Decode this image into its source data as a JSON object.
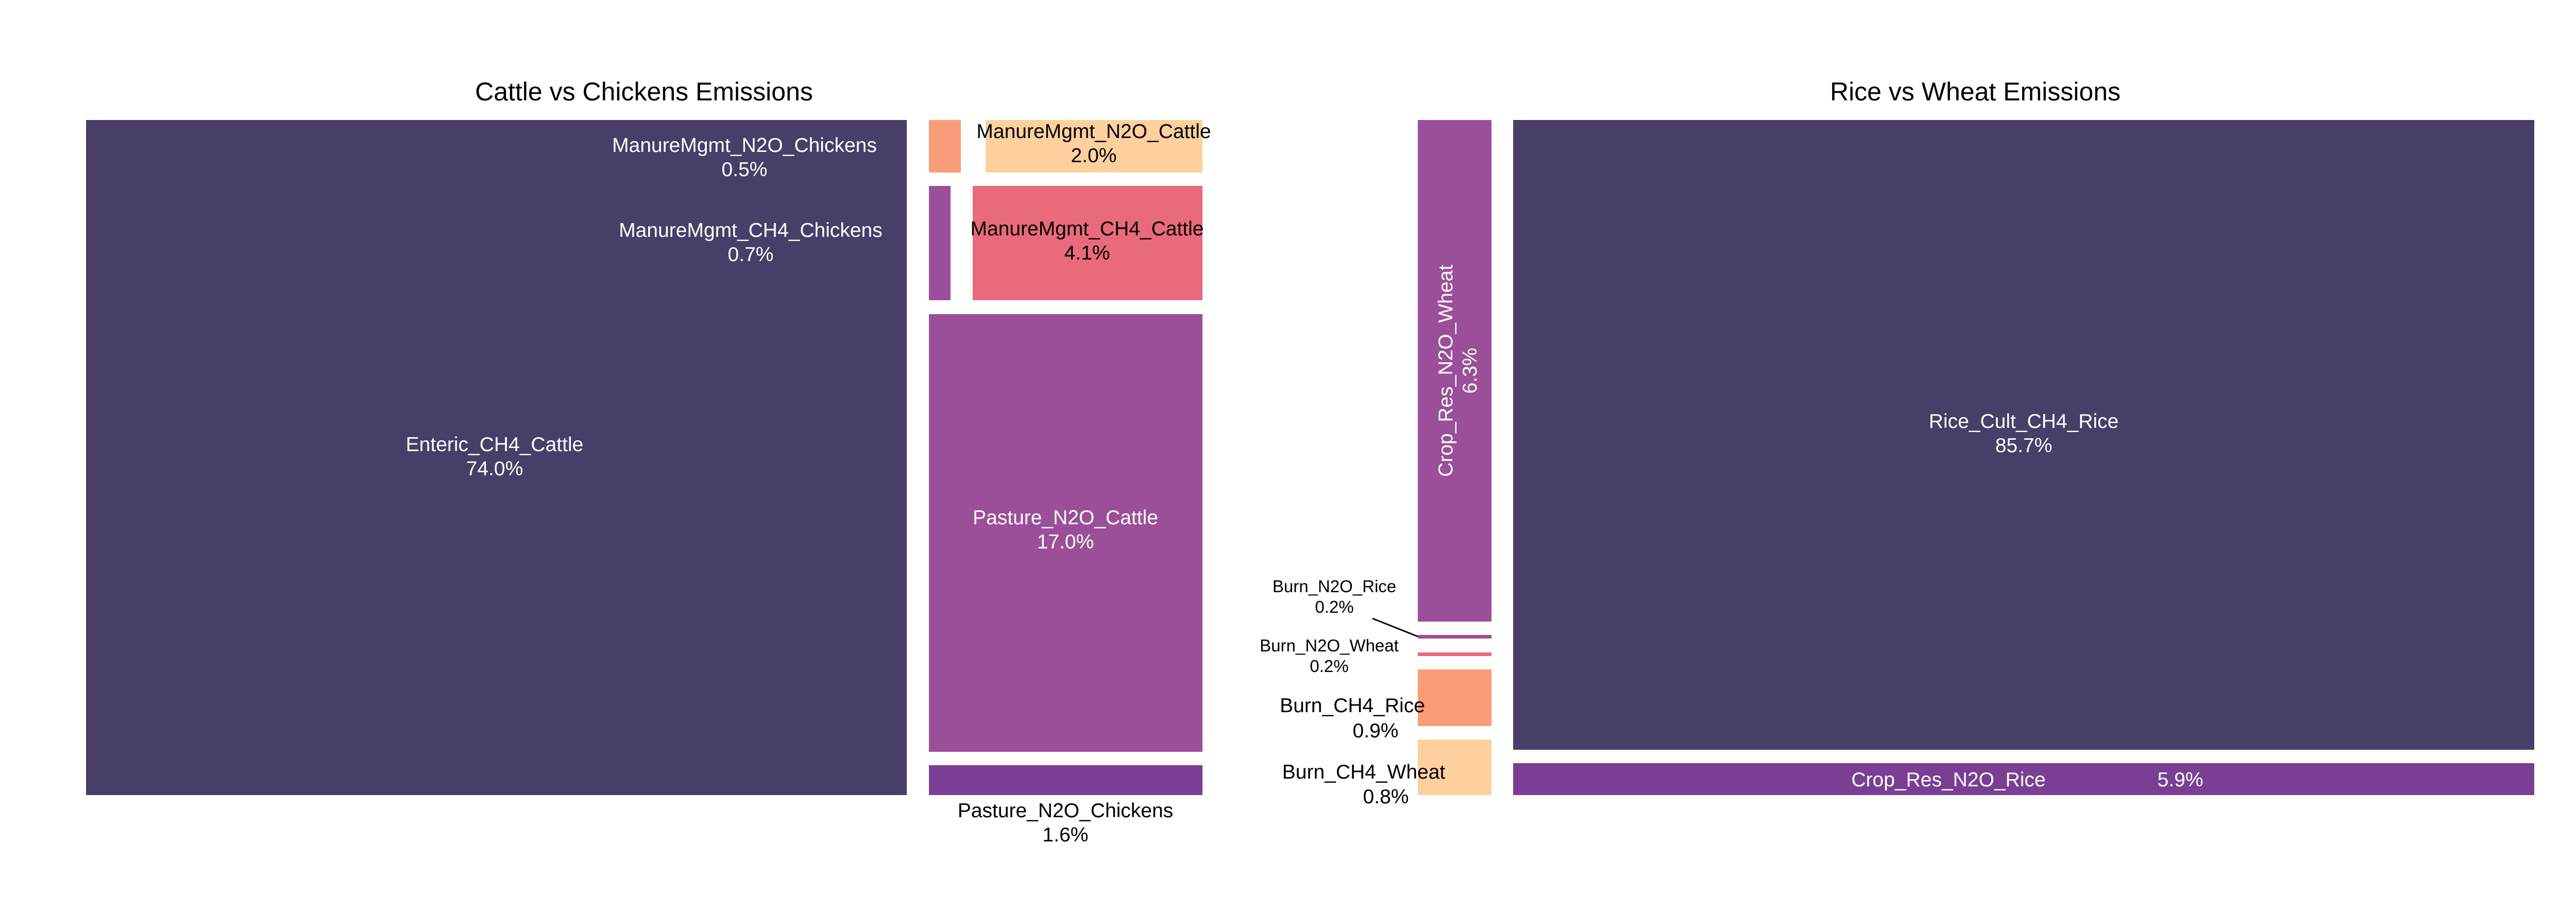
{
  "colors": {
    "dark": "#483e68",
    "purple": "#9b4f99",
    "deep_purple": "#7a3e94",
    "pink": "#e96a7b",
    "salmon": "#f99c79",
    "peach": "#fdd09e",
    "white": "#ffffff",
    "black": "#000000"
  },
  "chart_data": [
    {
      "type": "treemap",
      "title": "Cattle vs Chickens Emissions",
      "series": [
        {
          "name": "Enteric_CH4_Cattle",
          "value": 74.0,
          "label": "74.0%",
          "color": "#483e68"
        },
        {
          "name": "Pasture_N2O_Cattle",
          "value": 17.0,
          "label": "17.0%",
          "color": "#9b4f99"
        },
        {
          "name": "ManureMgmt_CH4_Cattle",
          "value": 4.1,
          "label": "4.1%",
          "color": "#e96a7b"
        },
        {
          "name": "ManureMgmt_N2O_Cattle",
          "value": 2.0,
          "label": "2.0%",
          "color": "#fdd09e"
        },
        {
          "name": "Pasture_N2O_Chickens",
          "value": 1.6,
          "label": "1.6%",
          "color": "#7a3e94"
        },
        {
          "name": "ManureMgmt_CH4_Chickens",
          "value": 0.7,
          "label": "0.7%",
          "color": "#9b4f99"
        },
        {
          "name": "ManureMgmt_N2O_Chickens",
          "value": 0.5,
          "label": "0.5%",
          "color": "#f99c79"
        }
      ]
    },
    {
      "type": "treemap",
      "title": "Rice vs Wheat Emissions",
      "series": [
        {
          "name": "Rice_Cult_CH4_Rice",
          "value": 85.7,
          "label": "85.7%",
          "color": "#483e68"
        },
        {
          "name": "Crop_Res_N2O_Wheat",
          "value": 6.3,
          "label": "6.3%",
          "color": "#9b4f99"
        },
        {
          "name": "Crop_Res_N2O_Rice",
          "value": 5.9,
          "label": "5.9%",
          "color": "#7a3e94"
        },
        {
          "name": "Burn_CH4_Rice",
          "value": 0.9,
          "label": "0.9%",
          "color": "#f99c79"
        },
        {
          "name": "Burn_CH4_Wheat",
          "value": 0.8,
          "label": "0.8%",
          "color": "#fdd09e"
        },
        {
          "name": "Burn_N2O_Rice",
          "value": 0.2,
          "label": "0.2%",
          "color": "#9b4f99"
        },
        {
          "name": "Burn_N2O_Wheat",
          "value": 0.2,
          "label": "0.2%",
          "color": "#e96a7b"
        }
      ]
    }
  ]
}
